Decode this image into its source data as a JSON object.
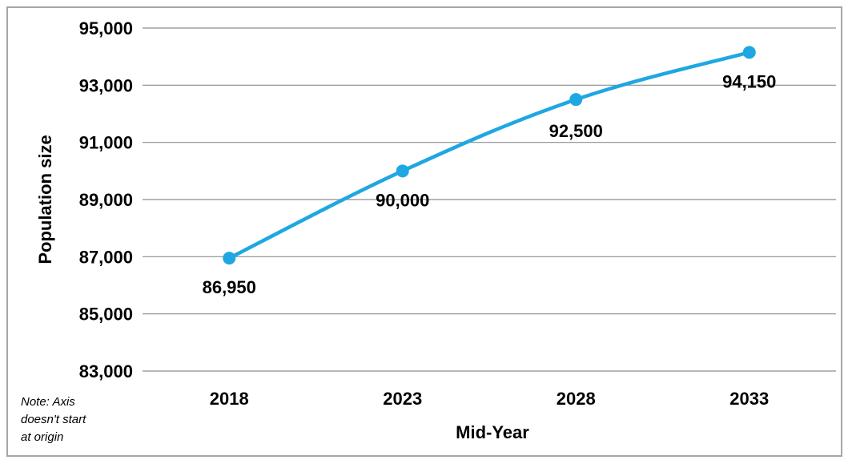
{
  "chart_data": {
    "type": "line",
    "title": "",
    "xlabel": "Mid-Year",
    "ylabel": "Population size",
    "categories": [
      "2018",
      "2023",
      "2028",
      "2033"
    ],
    "series": [
      {
        "values": [
          86950,
          90000,
          92500,
          94150
        ],
        "data_labels": [
          "86,950",
          "90,000",
          "92,500",
          "94,150"
        ],
        "color": "#1fa7e1"
      }
    ],
    "ylim": [
      83000,
      95000
    ],
    "yticks": [
      83000,
      85000,
      87000,
      89000,
      91000,
      93000,
      95000
    ],
    "ytick_labels": [
      "83,000",
      "85,000",
      "87,000",
      "89,000",
      "91,000",
      "93,000",
      "95,000"
    ],
    "grid": true,
    "legend": "none",
    "gridline_color": "#8c8c8c"
  },
  "note": {
    "lines": [
      "Note: Axis",
      "doesn't start",
      "at origin"
    ]
  }
}
